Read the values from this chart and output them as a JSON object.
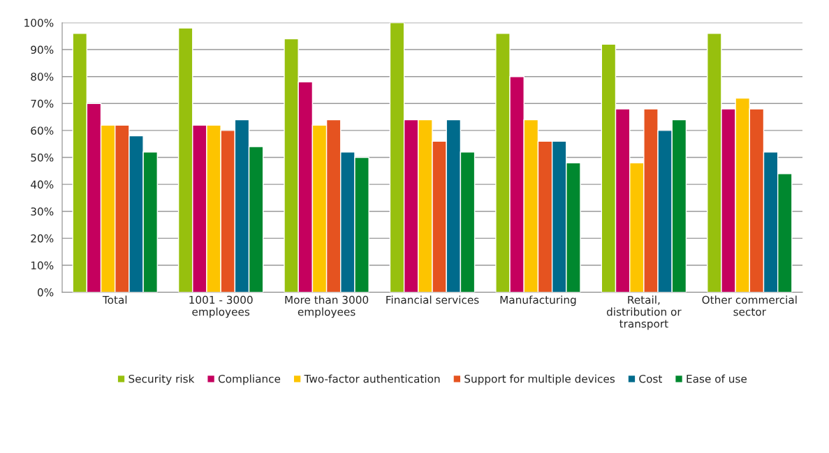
{
  "chart_data": {
    "type": "bar",
    "categories": [
      "Total",
      "1001 - 3000\nemployees",
      "More than 3000\nemployees",
      "Financial services",
      "Manufacturing",
      "Retail,\ndistribution or\ntransport",
      "Other commercial\nsector"
    ],
    "series": [
      {
        "name": "Security risk",
        "color": "#97c00e",
        "values": [
          96,
          98,
          94,
          100,
          96,
          92,
          96
        ]
      },
      {
        "name": "Compliance",
        "color": "#c5005e",
        "values": [
          70,
          62,
          78,
          64,
          80,
          68,
          68
        ]
      },
      {
        "name": "Two-factor authentication",
        "color": "#fdc400",
        "values": [
          62,
          62,
          62,
          64,
          64,
          48,
          72
        ]
      },
      {
        "name": "Support for multiple devices",
        "color": "#e55320",
        "values": [
          62,
          60,
          64,
          56,
          56,
          68,
          68
        ]
      },
      {
        "name": "Cost",
        "color": "#006b8c",
        "values": [
          58,
          64,
          52,
          64,
          56,
          60,
          52
        ]
      },
      {
        "name": "Ease of use",
        "color": "#00882f",
        "values": [
          52,
          54,
          50,
          52,
          48,
          64,
          44
        ]
      }
    ],
    "ylim": [
      0,
      100
    ],
    "yticks": [
      {
        "value": 0,
        "label": "0%"
      },
      {
        "value": 10,
        "label": "10%"
      },
      {
        "value": 20,
        "label": "20%"
      },
      {
        "value": 30,
        "label": "30%"
      },
      {
        "value": 40,
        "label": "40%"
      },
      {
        "value": 50,
        "label": "50%"
      },
      {
        "value": 60,
        "label": "60%"
      },
      {
        "value": 70,
        "label": "70%"
      },
      {
        "value": 80,
        "label": "80%"
      },
      {
        "value": 90,
        "label": "90%"
      },
      {
        "value": 100,
        "label": "100%"
      }
    ],
    "grid": "y",
    "legend": "bottom"
  }
}
